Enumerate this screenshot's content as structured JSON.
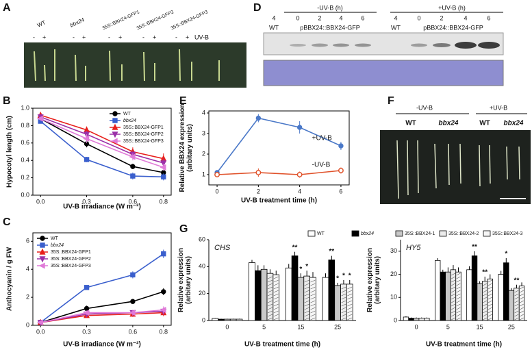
{
  "panel_letters": [
    "A",
    "B",
    "C",
    "D",
    "E",
    "F",
    "G"
  ],
  "panel_a": {
    "genotypes": [
      "WT",
      "bbx24",
      "35S::BBX24-GFP1",
      "35S::BBX24-GFP2",
      "35S::BBX24-GFP3"
    ],
    "signs": [
      "-",
      "+"
    ],
    "treatment": "UV-B"
  },
  "panel_d": {
    "groups": [
      {
        "header": "-UV-B (h)",
        "times": [
          "4",
          "0",
          "2",
          "4",
          "6"
        ],
        "control": "WT",
        "line": "pBBX24::BBX24-GFP"
      },
      {
        "header": "+UV-B (h)",
        "times": [
          "4",
          "0",
          "2",
          "4",
          "6"
        ],
        "control": "WT",
        "line": "pBBX24::BBX24-GFP"
      }
    ]
  },
  "panel_f": {
    "groups": [
      {
        "header": "-UV-B",
        "labels": [
          "WT",
          "bbx24"
        ]
      },
      {
        "header": "+UV-B",
        "labels": [
          "WT",
          "bbx24"
        ]
      }
    ]
  },
  "chart_data": [
    {
      "type": "line",
      "ylabel": [
        "Hypocotyl length (cm)"
      ],
      "xlabel": "UV-B irradiance (W m⁻²)",
      "x": [
        0,
        0.3,
        0.6,
        0.8
      ],
      "xlim": [
        -0.05,
        0.85
      ],
      "xticks": [
        {
          "value": 0,
          "label": "0.0"
        },
        0.3,
        0.6,
        0.8
      ],
      "ylim": [
        0,
        1
      ],
      "yticks": [
        {
          "value": 0,
          "label": "0.0"
        },
        0.2,
        0.4,
        0.6,
        0.8,
        {
          "value": 1,
          "label": "1.0"
        }
      ],
      "legend": "upper right",
      "series": [
        {
          "name": "WT",
          "color": "#000000",
          "marker": "circle",
          "values": [
            0.88,
            0.59,
            0.33,
            0.26
          ],
          "errors": [
            0.02,
            0.04,
            0.03,
            0.03
          ]
        },
        {
          "name": "bbx24",
          "color": "#3a5fcd",
          "marker": "square",
          "values": [
            0.85,
            0.41,
            0.22,
            0.21
          ],
          "errors": [
            0.02,
            0.03,
            0.04,
            0.04
          ]
        },
        {
          "name": "35S::BBX24-GFP1",
          "color": "#e8201c",
          "marker": "triangle-up",
          "values": [
            0.92,
            0.75,
            0.5,
            0.42
          ],
          "errors": [
            0.02,
            0.04,
            0.05,
            0.06
          ]
        },
        {
          "name": "35S::BBX24-GFP2",
          "color": "#9b30a8",
          "marker": "triangle-down",
          "values": [
            0.9,
            0.7,
            0.47,
            0.37
          ],
          "errors": [
            0.02,
            0.04,
            0.04,
            0.05
          ]
        },
        {
          "name": "35S::BBX24-GFP3",
          "color": "#e07ad8",
          "marker": "triangle-left",
          "values": [
            0.88,
            0.65,
            0.44,
            0.32
          ],
          "errors": [
            0.02,
            0.05,
            0.04,
            0.04
          ]
        }
      ]
    },
    {
      "type": "line",
      "ylabel": [
        "Anthocyanin / g FW"
      ],
      "xlabel": "UV-B irradiance (W m⁻²)",
      "x": [
        0,
        0.3,
        0.6,
        0.8
      ],
      "xlim": [
        -0.05,
        0.85
      ],
      "xticks": [
        {
          "value": 0,
          "label": "0.0"
        },
        0.3,
        0.6,
        0.8
      ],
      "ylim": [
        0,
        6.6
      ],
      "yticks": [
        0,
        2,
        4,
        6
      ],
      "legend": "upper left",
      "series": [
        {
          "name": "WT",
          "color": "#000000",
          "marker": "circle",
          "values": [
            0.2,
            1.2,
            1.7,
            2.4
          ],
          "errors": [
            0.05,
            0.2,
            0.1,
            0.25
          ]
        },
        {
          "name": "bbx24",
          "color": "#3a5fcd",
          "marker": "square",
          "values": [
            0.2,
            2.7,
            3.6,
            5.1
          ],
          "errors": [
            0.05,
            0.15,
            0.25,
            0.3
          ]
        },
        {
          "name": "35S::BBX24-GFP1",
          "color": "#e8201c",
          "marker": "triangle-up",
          "values": [
            0.2,
            0.7,
            0.8,
            0.9
          ],
          "errors": [
            0.05,
            0.15,
            0.2,
            0.25
          ]
        },
        {
          "name": "35S::BBX24-GFP2",
          "color": "#9b30a8",
          "marker": "triangle-down",
          "values": [
            0.2,
            0.8,
            0.9,
            1
          ],
          "errors": [
            0.05,
            0.15,
            0.2,
            0.25
          ]
        },
        {
          "name": "35S::BBX24-GFP3",
          "color": "#e07ad8",
          "marker": "triangle-left",
          "values": [
            0.2,
            0.9,
            0.9,
            1.1
          ],
          "errors": [
            0.05,
            0.15,
            0.2,
            0.25
          ]
        }
      ]
    },
    {
      "type": "line",
      "ylabel": [
        "Relative BBX24 expression",
        "(arbitary units)"
      ],
      "xlabel": "UV-B treatment time (h)",
      "x": [
        0,
        2,
        4,
        6
      ],
      "xlim": [
        -0.4,
        6.4
      ],
      "xticks": [
        0,
        2,
        4,
        6
      ],
      "ylim": [
        0.5,
        4.1
      ],
      "yticks": [
        1,
        2,
        3,
        4
      ],
      "legend": "inline",
      "series": [
        {
          "name": "+UV-B",
          "color": "#4a78c8",
          "marker": "circle",
          "values": [
            1.1,
            3.75,
            3.3,
            2.4
          ],
          "errors": [
            0.1,
            0.2,
            0.3,
            0.2
          ]
        },
        {
          "name": "-UV-B",
          "color": "#e0522a",
          "marker": "open-circle",
          "values": [
            1,
            1.1,
            1,
            1.2
          ],
          "errors": [
            0.1,
            0.2,
            0.15,
            0.15
          ]
        }
      ]
    },
    {
      "type": "bar",
      "title": "CHS",
      "ylabel": [
        "Relative expression",
        "(arbitary units)"
      ],
      "xlabel": "UV-B treatment time (h)",
      "categories": [
        "0",
        "5",
        "15",
        "25"
      ],
      "ylim": [
        0,
        60
      ],
      "yticks": [
        0,
        20,
        40,
        60
      ],
      "legend": "top",
      "series": [
        {
          "name": "WT",
          "color": "#ffffff",
          "values": [
            1.5,
            43,
            39,
            32
          ],
          "errors": [
            0.3,
            2,
            3,
            3
          ]
        },
        {
          "name": "bbx24",
          "color": "#000000",
          "values": [
            1,
            37,
            48,
            45
          ],
          "errors": [
            0.3,
            4,
            3,
            3
          ]
        },
        {
          "name": "35S::BBX24-1",
          "color": "#c8c8c8",
          "values": [
            1,
            38,
            32,
            26
          ],
          "errors": [
            0.3,
            3,
            3,
            2
          ]
        },
        {
          "name": "35S::BBX24-2",
          "color": "#ececec",
          "values": [
            1,
            35,
            33,
            27
          ],
          "errors": [
            0.3,
            3,
            4,
            3
          ]
        },
        {
          "name": "35S::BBX24-3",
          "color": "#f6f6f6",
          "values": [
            1,
            34,
            32,
            27
          ],
          "errors": [
            0.3,
            3,
            4,
            3
          ]
        }
      ],
      "annotations": [
        {
          "text": "**",
          "category": 2,
          "series": 1
        },
        {
          "text": "*",
          "category": 2,
          "series": 2
        },
        {
          "text": "*",
          "category": 2,
          "series": 3
        },
        {
          "text": "**",
          "category": 3,
          "series": 1
        },
        {
          "text": "*",
          "category": 3,
          "series": 2
        },
        {
          "text": "*",
          "category": 3,
          "series": 3
        },
        {
          "text": "*",
          "category": 3,
          "series": 4
        }
      ]
    },
    {
      "type": "bar",
      "title": "HY5",
      "ylabel": [
        "Relative expression",
        "(arbitary units)"
      ],
      "xlabel": "UV-B treatment time (h)",
      "categories": [
        "0",
        "5",
        "15",
        "25"
      ],
      "ylim": [
        0,
        35
      ],
      "yticks": [
        0,
        10,
        20,
        30
      ],
      "series": [
        {
          "color": "#ffffff",
          "values": [
            1.5,
            26,
            22,
            20
          ],
          "errors": [
            0.3,
            1,
            1.5,
            1.5
          ]
        },
        {
          "color": "#000000",
          "values": [
            1,
            21,
            28,
            25
          ],
          "errors": [
            0.3,
            1,
            2,
            2
          ]
        },
        {
          "color": "#c8c8c8",
          "values": [
            1,
            21,
            16,
            13
          ],
          "errors": [
            0.3,
            2,
            1,
            1
          ]
        },
        {
          "color": "#ececec",
          "values": [
            1,
            22,
            17,
            14
          ],
          "errors": [
            0.3,
            2,
            2,
            1.5
          ]
        },
        {
          "color": "#f6f6f6",
          "values": [
            1,
            21,
            18,
            15
          ],
          "errors": [
            0.3,
            2,
            2,
            1.5
          ]
        }
      ],
      "annotations": [
        {
          "text": "**",
          "category": 2,
          "series": 1
        },
        {
          "text": "**",
          "category": 2,
          "series": 3
        },
        {
          "text": "*",
          "category": 3,
          "series": 1
        },
        {
          "text": "**",
          "category": 3,
          "series": 3
        }
      ]
    }
  ]
}
